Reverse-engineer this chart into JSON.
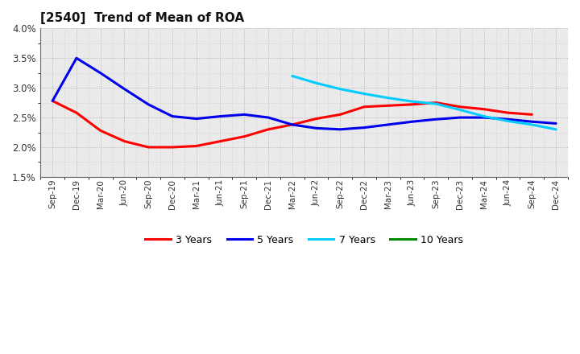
{
  "title": "[2540]  Trend of Mean of ROA",
  "xlabels": [
    "Sep-19",
    "Dec-19",
    "Mar-20",
    "Jun-20",
    "Sep-20",
    "Dec-20",
    "Mar-21",
    "Jun-21",
    "Sep-21",
    "Dec-21",
    "Mar-22",
    "Jun-22",
    "Sep-22",
    "Dec-22",
    "Mar-23",
    "Jun-23",
    "Sep-23",
    "Dec-23",
    "Mar-24",
    "Jun-24",
    "Sep-24",
    "Dec-24"
  ],
  "ylim": [
    0.015,
    0.04
  ],
  "yticks": [
    0.015,
    0.02,
    0.025,
    0.03,
    0.035,
    0.04
  ],
  "ytick_labels": [
    "1.5%",
    "2.0%",
    "2.5%",
    "3.0%",
    "3.5%",
    "4.0%"
  ],
  "series": {
    "3 Years": {
      "color": "#FF0000",
      "linewidth": 2.2,
      "values": [
        0.0278,
        0.0258,
        0.0228,
        0.021,
        0.02,
        0.02,
        0.0202,
        0.021,
        0.0218,
        0.023,
        0.0238,
        0.0248,
        0.0255,
        0.0268,
        0.027,
        0.0272,
        0.0275,
        0.0268,
        0.0264,
        0.0258,
        0.0255,
        null
      ]
    },
    "5 Years": {
      "color": "#0000EE",
      "linewidth": 2.2,
      "values": [
        0.0278,
        0.035,
        0.0325,
        0.0298,
        0.0272,
        0.0252,
        0.0248,
        0.0252,
        0.0255,
        0.025,
        0.0238,
        0.0232,
        0.023,
        0.0233,
        0.0238,
        0.0243,
        0.0247,
        0.025,
        0.025,
        0.0247,
        0.0243,
        0.024
      ]
    },
    "7 Years": {
      "color": "#00CCFF",
      "linewidth": 2.2,
      "values": [
        null,
        null,
        null,
        null,
        null,
        null,
        null,
        null,
        null,
        null,
        0.032,
        0.0308,
        0.0298,
        0.029,
        0.0283,
        0.0277,
        0.0273,
        0.0263,
        0.0252,
        0.0244,
        0.0238,
        0.023
      ]
    },
    "10 Years": {
      "color": "#008800",
      "linewidth": 2.2,
      "values": [
        null,
        null,
        null,
        null,
        null,
        null,
        null,
        null,
        null,
        null,
        null,
        null,
        null,
        null,
        null,
        null,
        null,
        null,
        null,
        null,
        null,
        null
      ]
    }
  },
  "legend_labels": [
    "3 Years",
    "5 Years",
    "7 Years",
    "10 Years"
  ],
  "legend_colors": [
    "#FF0000",
    "#0000EE",
    "#00CCFF",
    "#008800"
  ],
  "plot_bg_color": "#EAEAEA",
  "background_color": "#FFFFFF",
  "grid_color": "#FFFFFF",
  "grid_dot_color": "#999999"
}
